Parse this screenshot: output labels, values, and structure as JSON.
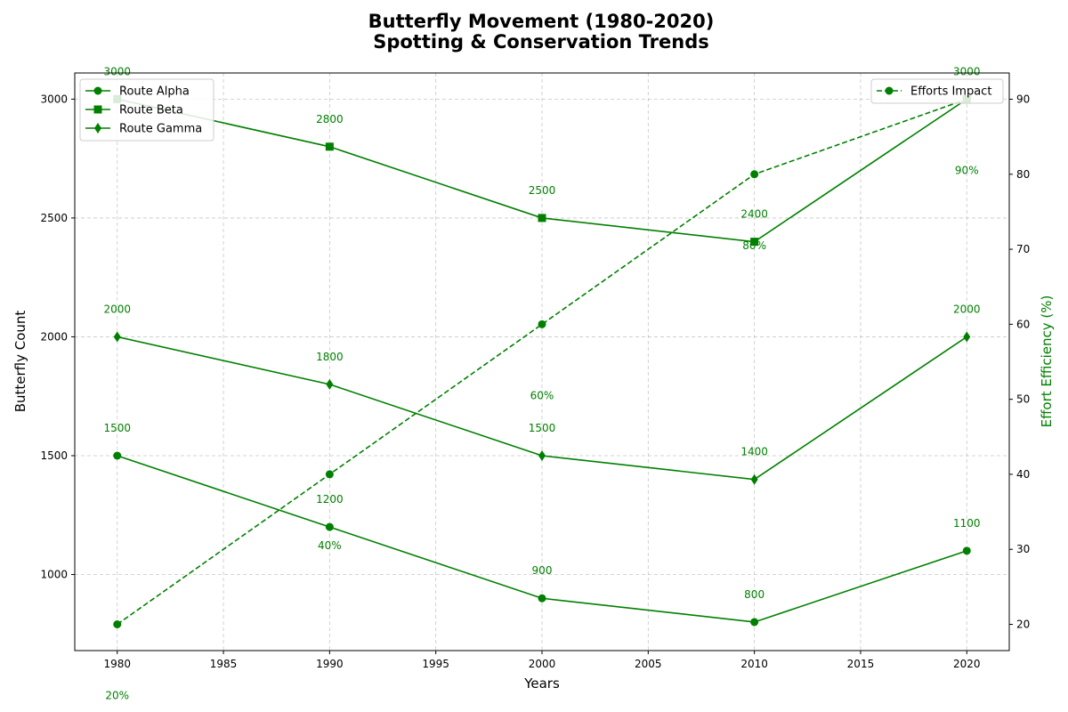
{
  "chart_data": {
    "type": "line",
    "title": "Butterfly Movement (1980-2020)",
    "subtitle": "Spotting & Conservation Trends",
    "xlabel": "Years",
    "ylabel": "Butterfly Count",
    "y2label": "Effort Efficiency (%)",
    "x": [
      1980,
      1990,
      2000,
      2010,
      2020
    ],
    "xlim": [
      1978,
      2022
    ],
    "ylim": [
      680,
      3110
    ],
    "y2lim": [
      16.5,
      93.5
    ],
    "xticks": [
      "1980",
      "1985",
      "1990",
      "1995",
      "2000",
      "2005",
      "2010",
      "2015",
      "2020"
    ],
    "yticks": [
      "1000",
      "1500",
      "2000",
      "2500",
      "3000"
    ],
    "y2ticks": [
      "20",
      "30",
      "40",
      "50",
      "60",
      "70",
      "80",
      "90"
    ],
    "grid": true,
    "color": "#008000",
    "series": [
      {
        "name": "Route Alpha",
        "marker": "circle",
        "axis": "left",
        "values": [
          1500,
          1200,
          900,
          800,
          1100
        ],
        "labels": [
          "1500",
          "1200",
          "900",
          "800",
          "1100"
        ]
      },
      {
        "name": "Route Beta",
        "marker": "square",
        "axis": "left",
        "values": [
          3000,
          2800,
          2500,
          2400,
          3000
        ],
        "labels": [
          "3000",
          "2800",
          "2500",
          "2400",
          "3000"
        ]
      },
      {
        "name": "Route Gamma",
        "marker": "diamond",
        "axis": "left",
        "values": [
          2000,
          1800,
          1500,
          1400,
          2000
        ],
        "labels": [
          "2000",
          "1800",
          "1500",
          "1400",
          "2000"
        ]
      },
      {
        "name": "Efforts Impact",
        "marker": "circle",
        "axis": "right",
        "dashed": true,
        "values": [
          20,
          40,
          60,
          80,
          90
        ],
        "labels": [
          "20%",
          "40%",
          "60%",
          "80%",
          "90%"
        ]
      }
    ],
    "legend_left": "upper-left",
    "legend_right": "upper-right"
  }
}
